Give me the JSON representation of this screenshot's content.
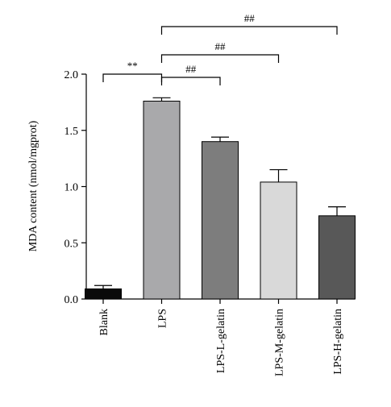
{
  "chart_data": {
    "type": "bar",
    "title": "",
    "xlabel": "",
    "ylabel": "MDA content (nmol/mgprot)",
    "ylim": [
      0,
      2.0
    ],
    "yticks": [
      "0.0",
      "0.5",
      "1.0",
      "1.5",
      "2.0"
    ],
    "ytick_values": [
      0.0,
      0.5,
      1.0,
      1.5,
      2.0
    ],
    "grid": false,
    "categories": [
      "Blank",
      "LPS",
      "LPS-L-gelatin",
      "LPS-M-gelatin",
      "LPS-H-gelatin"
    ],
    "values": [
      0.09,
      1.76,
      1.4,
      1.04,
      0.74
    ],
    "errors": [
      0.03,
      0.03,
      0.04,
      0.11,
      0.08
    ],
    "bar_colors": [
      "#0a0a0a",
      "#a9a9ab",
      "#7d7d7d",
      "#d9d9d9",
      "#585858"
    ],
    "significance": [
      {
        "from": "Blank",
        "to": "LPS",
        "label": "**"
      },
      {
        "from": "LPS",
        "to": "LPS-L-gelatin",
        "label": "##"
      },
      {
        "from": "LPS",
        "to": "LPS-M-gelatin",
        "label": "##"
      },
      {
        "from": "LPS",
        "to": "LPS-H-gelatin",
        "label": "##"
      }
    ]
  }
}
